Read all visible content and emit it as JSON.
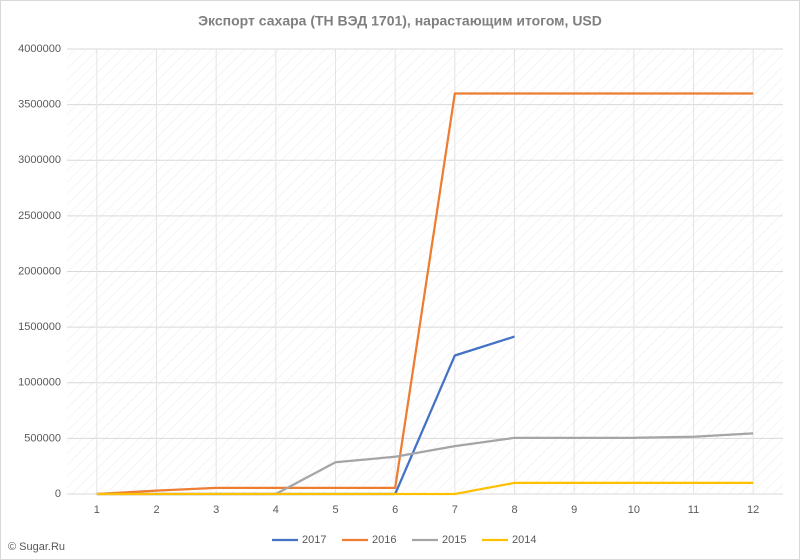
{
  "chart_data": {
    "type": "line",
    "title": "Экспорт сахара (ТН ВЭД 1701), нарастающим итогом, USD",
    "categories": [
      "1",
      "2",
      "3",
      "4",
      "5",
      "6",
      "7",
      "8",
      "9",
      "10",
      "11",
      "12"
    ],
    "series": [
      {
        "name": "2017",
        "color": "#4472c4",
        "values": [
          0,
          0,
          0,
          0,
          0,
          0,
          1245000,
          1415000,
          null,
          null,
          null,
          null
        ]
      },
      {
        "name": "2016",
        "color": "#ed7d31",
        "values": [
          0,
          30000,
          55000,
          55000,
          55000,
          55000,
          3600000,
          3600000,
          3600000,
          3600000,
          3600000,
          3600000
        ]
      },
      {
        "name": "2015",
        "color": "#a5a5a5",
        "values": [
          0,
          0,
          0,
          0,
          285000,
          335000,
          430000,
          505000,
          505000,
          505000,
          515000,
          545000
        ]
      },
      {
        "name": "2014",
        "color": "#ffc000",
        "values": [
          0,
          0,
          0,
          0,
          0,
          0,
          0,
          100000,
          100000,
          100000,
          100000,
          100000
        ]
      }
    ],
    "ylim": [
      0,
      4000000
    ],
    "yticks": [
      0,
      500000,
      1000000,
      1500000,
      2000000,
      2500000,
      3000000,
      3500000,
      4000000
    ],
    "grid": true,
    "legend": "bottom",
    "source": "© Sugar.Ru"
  }
}
